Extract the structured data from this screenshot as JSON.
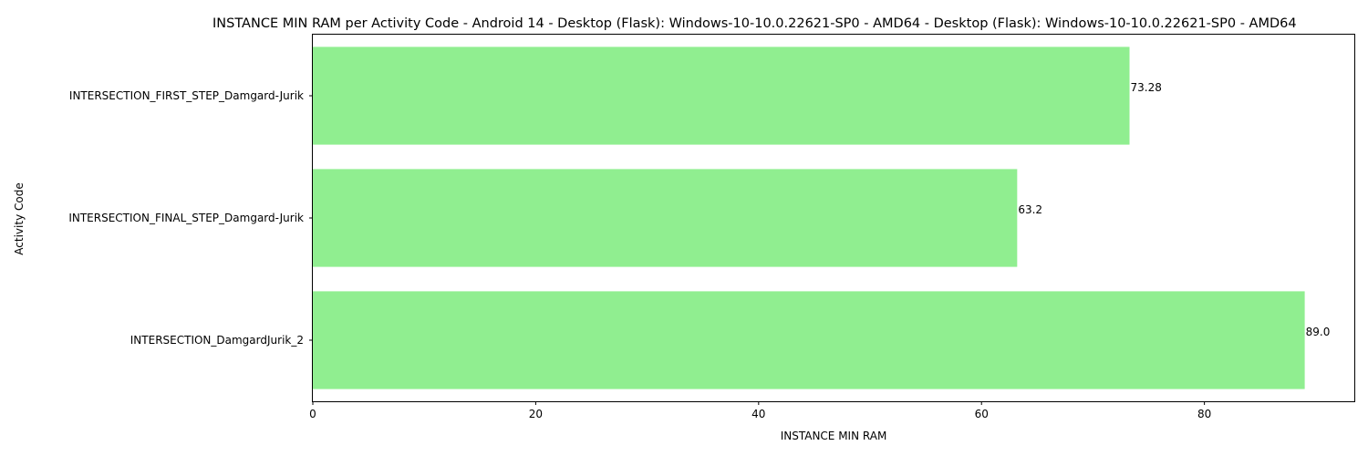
{
  "chart_data": {
    "type": "bar",
    "orientation": "horizontal",
    "title": "INSTANCE MIN RAM per Activity Code - Android 14 - Desktop (Flask): Windows-10-10.0.22621-SP0 - AMD64 - Desktop (Flask): Windows-10-10.0.22621-SP0 - AMD64",
    "xlabel": "INSTANCE MIN RAM",
    "ylabel": "Activity Code",
    "categories": [
      "INTERSECTION_FIRST_STEP_Damgard-Jurik",
      "INTERSECTION_FINAL_STEP_Damgard-Jurik",
      "INTERSECTION_DamgardJurik_2"
    ],
    "values": [
      73.28,
      63.2,
      89.0
    ],
    "data_labels": [
      "73.28",
      "63.2",
      "89.0"
    ],
    "xlim": [
      0,
      93.45
    ],
    "xticks": [
      0,
      20,
      40,
      60,
      80
    ],
    "xtick_labels": [
      "0",
      "20",
      "40",
      "60",
      "80"
    ],
    "bar_color": "#90ee90",
    "grid": false,
    "legend": "none"
  }
}
